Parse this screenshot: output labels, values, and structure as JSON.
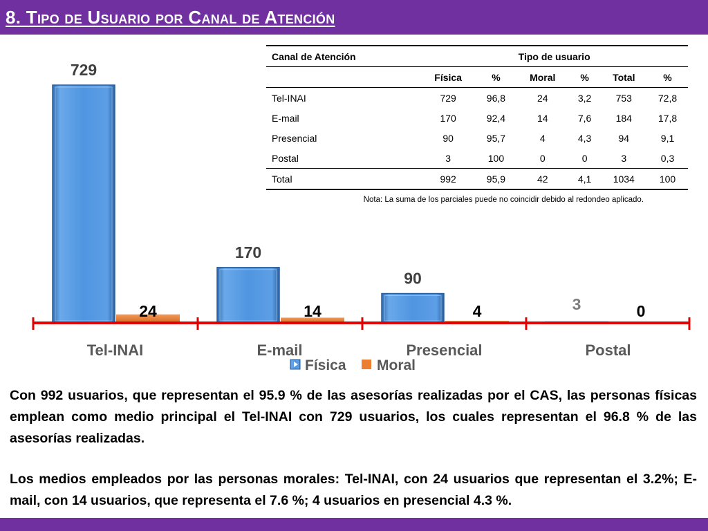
{
  "title": "8. Tipo de Usuario por Canal de Atención",
  "chart_data": {
    "type": "bar",
    "categories": [
      "Tel-INAI",
      "E-mail",
      "Presencial",
      "Postal"
    ],
    "series": [
      {
        "name": "Física",
        "values": [
          729,
          170,
          90,
          3
        ],
        "color": "#5b9bd5"
      },
      {
        "name": "Moral",
        "values": [
          24,
          14,
          4,
          0
        ],
        "color": "#ed7d31"
      }
    ],
    "data_labels": {
      "Física": [
        "729",
        "170",
        "90",
        "3"
      ],
      "Moral": [
        "24",
        "14",
        "4",
        "0"
      ]
    },
    "ylim": [
      0,
      729
    ],
    "legend_position": "bottom",
    "axis_color": "#e00000",
    "label_color": "#404040",
    "postal_label_color": "#7f7f7f"
  },
  "table": {
    "header_left": "Canal de Atención",
    "header_group": "Tipo de usuario",
    "subheaders": [
      "Física",
      "%",
      "Moral",
      "%",
      "Total",
      "%"
    ],
    "rows": [
      {
        "label": "Tel-INAI",
        "values": [
          "729",
          "96,8",
          "24",
          "3,2",
          "753",
          "72,8"
        ]
      },
      {
        "label": "E-mail",
        "values": [
          "170",
          "92,4",
          "14",
          "7,6",
          "184",
          "17,8"
        ]
      },
      {
        "label": "Presencial",
        "values": [
          "90",
          "95,7",
          "4",
          "4,3",
          "94",
          "9,1"
        ]
      },
      {
        "label": "Postal",
        "values": [
          "3",
          "100",
          "0",
          "0",
          "3",
          "0,3"
        ]
      }
    ],
    "total": {
      "label": "Total",
      "values": [
        "992",
        "95,9",
        "42",
        "4,1",
        "1034",
        "100"
      ]
    },
    "note": "Nota: La suma de los parciales puede no coincidir debido al redondeo aplicado."
  },
  "paragraphs": [
    "Con 992 usuarios, que representan el 95.9 % de las asesorías realizadas por el CAS, las personas físicas emplean como medio principal el Tel-INAI con 729 usuarios, los cuales representan el 96.8 % de las asesorías realizadas.",
    "Los medios empleados por las personas morales: Tel-INAI, con 24 usuarios que representan el 3.2%; E-mail, con 14 usuarios, que representa el 7.6 %; 4 usuarios en presencial 4.3 %."
  ],
  "colors": {
    "title_bar": "#7030a0",
    "title_text": "#ffffff"
  }
}
